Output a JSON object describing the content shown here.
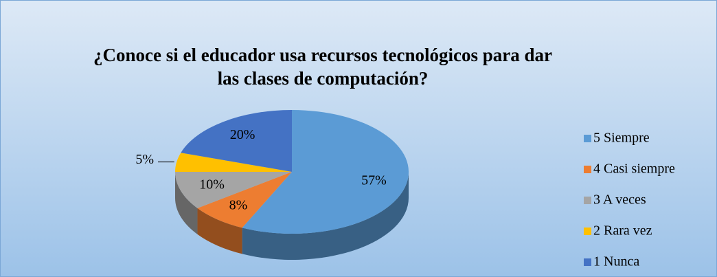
{
  "chart_data": {
    "type": "pie",
    "title": [
      "¿Conoce si el educador  usa recursos tecnológicos para dar",
      "las clases de computación?"
    ],
    "categories": [
      "5 Siempre",
      "4 Casi siempre",
      "3 A veces",
      "2 Rara vez",
      "1 Nunca"
    ],
    "values": [
      57,
      8,
      10,
      5,
      20
    ],
    "value_labels": [
      "57%",
      "8%",
      "10%",
      "5%",
      "20%"
    ],
    "colors": [
      "#5b9bd5",
      "#ed7d31",
      "#a5a5a5",
      "#ffc000",
      "#4472c4"
    ],
    "legend": "right"
  }
}
